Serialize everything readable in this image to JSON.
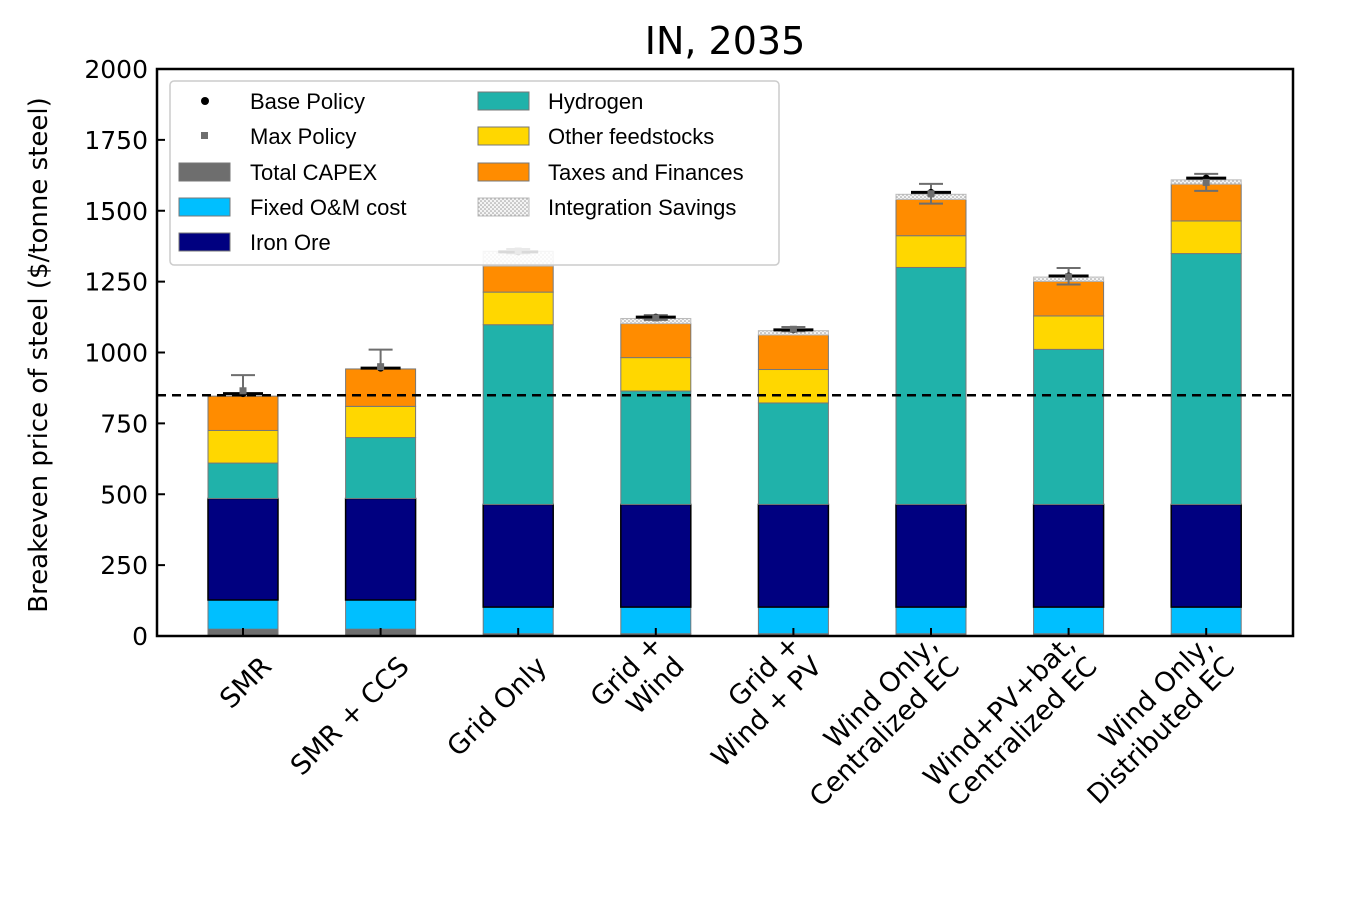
{
  "chart_data": {
    "type": "bar",
    "stacked": true,
    "title": "IN, 2035",
    "ylabel": "Breakeven price of steel ($/tonne steel)",
    "xlabel": "",
    "ylim": [
      0,
      2000
    ],
    "yticks": [
      0,
      250,
      500,
      750,
      1000,
      1250,
      1500,
      1750,
      2000
    ],
    "grid": false,
    "legend_position": "top-left",
    "reference_line": {
      "value": 849,
      "style": "dashed",
      "color": "#000000"
    },
    "categories": [
      [
        "SMR"
      ],
      [
        "SMR + CCS"
      ],
      [
        "Grid Only"
      ],
      [
        "Grid +",
        "Wind"
      ],
      [
        "Grid +",
        "Wind + PV"
      ],
      [
        "Wind Only,",
        "Centralized EC"
      ],
      [
        "Wind+PV+bat,",
        "Centralized EC"
      ],
      [
        "Wind Only,",
        "Distributed EC"
      ]
    ],
    "series": [
      {
        "name": "Total CAPEX",
        "color": "#6e6e6e",
        "values": [
          24,
          24,
          8,
          8,
          8,
          8,
          8,
          8
        ]
      },
      {
        "name": "Fixed O&M cost",
        "color": "#00bfff",
        "values": [
          103,
          103,
          94,
          94,
          94,
          94,
          94,
          94
        ]
      },
      {
        "name": "Iron Ore",
        "color": "#000080",
        "values": [
          358,
          358,
          362,
          362,
          362,
          362,
          362,
          362
        ]
      },
      {
        "name": "Hydrogen",
        "color": "#20b2aa",
        "values": [
          125,
          215,
          634,
          400,
          358,
          836,
          547,
          885
        ]
      },
      {
        "name": "Other feedstocks",
        "color": "#ffd700",
        "values": [
          115,
          110,
          115,
          118,
          118,
          112,
          118,
          115
        ]
      },
      {
        "name": "Taxes and Finances",
        "color": "#ff8c00",
        "values": [
          121,
          132,
          92,
          120,
          122,
          128,
          122,
          130
        ]
      },
      {
        "name": "Integration Savings",
        "color": "#d9d9d9",
        "values": [
          0,
          0,
          52,
          18,
          15,
          18,
          15,
          15
        ]
      }
    ],
    "base_policy": {
      "name": "Base Policy",
      "values": [
        855,
        945,
        1355,
        1125,
        1080,
        1565,
        1270,
        1615
      ]
    },
    "max_policy": {
      "name": "Max Policy",
      "values": [
        865,
        950,
        1358,
        1122,
        1082,
        1560,
        1267,
        1600
      ],
      "error_low": [
        855,
        945,
        1350,
        1115,
        1075,
        1525,
        1240,
        1570
      ],
      "error_high": [
        920,
        1010,
        1365,
        1132,
        1090,
        1595,
        1298,
        1630
      ]
    },
    "legend": [
      "Base Policy",
      "Max Policy",
      "Total CAPEX",
      "Fixed O&M cost",
      "Iron Ore",
      "Hydrogen",
      "Other feedstocks",
      "Taxes and Finances",
      "Integration Savings"
    ]
  }
}
